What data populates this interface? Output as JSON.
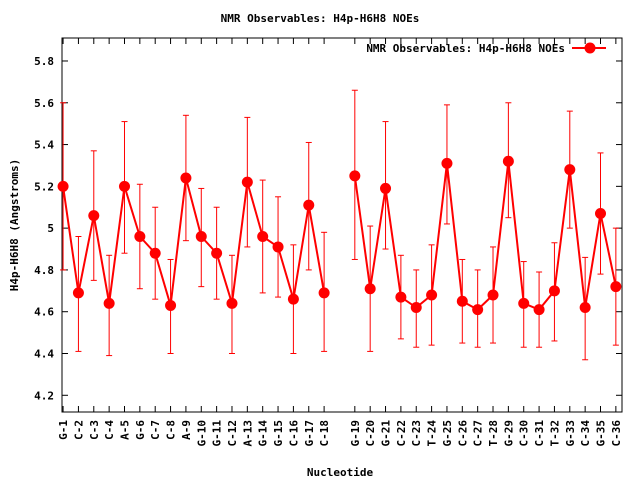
{
  "chart_data": {
    "type": "line",
    "title": "NMR Observables: H4p-H6H8 NOEs",
    "xlabel": "Nucleotide",
    "ylabel": "H4p-H6H8 (Angstroms)",
    "legend": {
      "label": "NMR Observables: H4p-H6H8 NOEs",
      "placement": "top-right"
    },
    "ylim": [
      4.12,
      5.91
    ],
    "xlim": [
      0.93,
      37.4
    ],
    "yticks": [
      "4.2",
      "4.4",
      "4.6",
      "4.8",
      "5",
      "5.2",
      "5.4",
      "5.6",
      "5.8"
    ],
    "ytick_values": [
      4.2,
      4.4,
      4.6,
      4.8,
      5.0,
      5.2,
      5.4,
      5.6,
      5.8
    ],
    "color": "#ff0000",
    "gap_after": "C-18",
    "categories": [
      "G-1",
      "C-2",
      "C-3",
      "C-4",
      "A-5",
      "G-6",
      "C-7",
      "C-8",
      "A-9",
      "G-10",
      "G-11",
      "C-12",
      "A-13",
      "G-14",
      "G-15",
      "C-16",
      "G-17",
      "C-18",
      "G-19",
      "C-20",
      "G-21",
      "C-22",
      "C-23",
      "T-24",
      "G-25",
      "C-26",
      "C-27",
      "T-28",
      "G-29",
      "C-30",
      "C-31",
      "T-32",
      "G-33",
      "C-34",
      "G-35",
      "C-36"
    ],
    "x": [
      1,
      2,
      3,
      4,
      5,
      6,
      7,
      8,
      9,
      10,
      11,
      12,
      13,
      14,
      15,
      16,
      17,
      18,
      20,
      21,
      22,
      23,
      24,
      25,
      26,
      27,
      28,
      29,
      30,
      31,
      32,
      33,
      34,
      35,
      36,
      37
    ],
    "values": [
      5.2,
      4.69,
      5.06,
      4.64,
      5.2,
      4.96,
      4.88,
      4.63,
      5.24,
      4.96,
      4.88,
      4.64,
      5.22,
      4.96,
      4.91,
      4.66,
      5.11,
      4.69,
      5.25,
      4.71,
      5.19,
      4.67,
      4.62,
      4.68,
      5.31,
      4.65,
      4.61,
      4.68,
      5.32,
      4.64,
      4.61,
      4.7,
      5.28,
      4.62,
      5.07,
      4.72
    ],
    "err_high": [
      5.6,
      4.96,
      5.37,
      4.87,
      5.51,
      5.21,
      5.1,
      4.85,
      5.54,
      5.19,
      5.1,
      4.87,
      5.53,
      5.23,
      5.15,
      4.92,
      5.41,
      4.98,
      5.66,
      5.01,
      5.51,
      4.87,
      4.8,
      4.92,
      5.59,
      4.85,
      4.8,
      4.91,
      5.6,
      4.84,
      4.79,
      4.93,
      5.56,
      4.86,
      5.36,
      5.0
    ],
    "err_low": [
      4.8,
      4.41,
      4.75,
      4.39,
      4.88,
      4.71,
      4.66,
      4.4,
      4.94,
      4.72,
      4.66,
      4.4,
      4.91,
      4.69,
      4.67,
      4.4,
      4.8,
      4.41,
      4.85,
      4.41,
      4.9,
      4.47,
      4.43,
      4.44,
      5.02,
      4.45,
      4.43,
      4.45,
      5.05,
      4.43,
      4.43,
      4.46,
      5.0,
      4.37,
      4.78,
      4.44
    ]
  }
}
